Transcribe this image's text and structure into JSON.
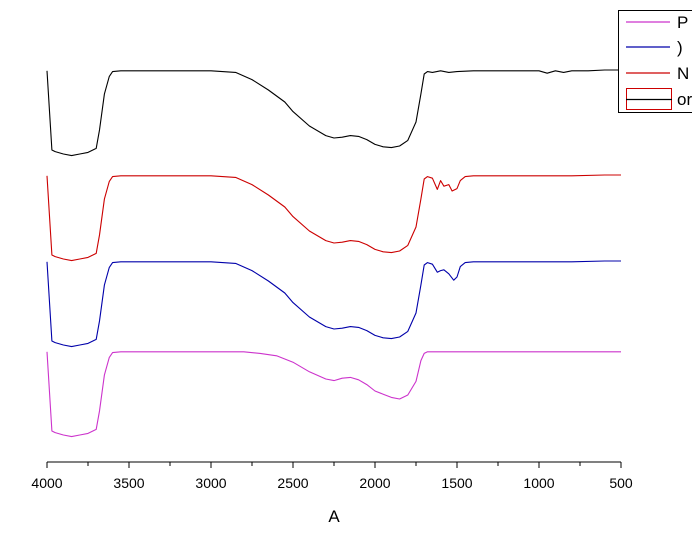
{
  "chart_data": {
    "type": "line",
    "title": "",
    "xlabel": "A",
    "ylabel": "",
    "xlim": [
      4000,
      500
    ],
    "x_reversed": true,
    "grid": false,
    "legend_placement": "top-right",
    "xticks": [
      4000,
      3500,
      3000,
      2500,
      2000,
      1500,
      1000,
      500
    ],
    "series": [
      {
        "name": "or",
        "color": "#000000",
        "offset": 0,
        "x": [
          4000,
          3970,
          3950,
          3900,
          3850,
          3800,
          3750,
          3700,
          3680,
          3650,
          3620,
          3600,
          3550,
          3500,
          3000,
          2850,
          2750,
          2650,
          2550,
          2500,
          2400,
          2300,
          2250,
          2200,
          2150,
          2100,
          2050,
          2000,
          1950,
          1900,
          1850,
          1800,
          1750,
          1720,
          1700,
          1680,
          1650,
          1600,
          1550,
          1500,
          1400,
          1200,
          1000,
          950,
          900,
          850,
          800,
          700,
          600,
          500
        ],
        "y": [
          99,
          0,
          -2,
          -5,
          -7,
          -5,
          -3,
          2,
          25,
          70,
          92,
          98,
          99,
          99,
          99,
          97,
          88,
          75,
          60,
          48,
          30,
          18,
          15,
          16,
          18,
          17,
          13,
          7,
          4,
          3,
          5,
          12,
          35,
          70,
          95,
          98,
          97,
          99,
          97,
          98,
          99,
          99,
          99,
          96,
          99,
          97,
          99,
          99,
          100,
          100
        ]
      },
      {
        "name": "N",
        "color": "#cc0000",
        "offset": 1,
        "x": [
          4000,
          3970,
          3950,
          3900,
          3850,
          3800,
          3750,
          3700,
          3680,
          3650,
          3620,
          3600,
          3550,
          3500,
          3000,
          2850,
          2750,
          2650,
          2550,
          2500,
          2400,
          2300,
          2250,
          2200,
          2150,
          2100,
          2050,
          2000,
          1950,
          1900,
          1850,
          1800,
          1750,
          1720,
          1700,
          1680,
          1650,
          1620,
          1600,
          1580,
          1550,
          1530,
          1500,
          1480,
          1450,
          1400,
          1200,
          1000,
          800,
          600,
          500
        ],
        "y": [
          99,
          0,
          -2,
          -5,
          -7,
          -5,
          -3,
          2,
          25,
          70,
          92,
          98,
          99,
          99,
          99,
          97,
          88,
          75,
          60,
          48,
          30,
          18,
          15,
          16,
          18,
          17,
          13,
          7,
          4,
          3,
          5,
          12,
          35,
          70,
          95,
          98,
          96,
          82,
          93,
          86,
          88,
          80,
          83,
          93,
          98,
          99,
          99,
          99,
          99,
          100,
          100
        ]
      },
      {
        "name": ")",
        "color": "#0000aa",
        "offset": 2,
        "x": [
          4000,
          3970,
          3950,
          3900,
          3850,
          3800,
          3750,
          3700,
          3680,
          3650,
          3620,
          3600,
          3550,
          3500,
          3000,
          2850,
          2750,
          2650,
          2550,
          2500,
          2400,
          2300,
          2250,
          2200,
          2150,
          2100,
          2050,
          2000,
          1950,
          1900,
          1850,
          1800,
          1750,
          1720,
          1700,
          1680,
          1650,
          1620,
          1600,
          1580,
          1550,
          1520,
          1500,
          1480,
          1450,
          1400,
          1200,
          1000,
          800,
          600,
          500
        ],
        "y": [
          99,
          0,
          -2,
          -5,
          -7,
          -5,
          -3,
          2,
          25,
          70,
          92,
          98,
          99,
          99,
          99,
          97,
          88,
          75,
          60,
          48,
          30,
          18,
          15,
          16,
          18,
          17,
          13,
          7,
          4,
          3,
          5,
          12,
          35,
          70,
          95,
          98,
          96,
          86,
          88,
          89,
          84,
          76,
          80,
          93,
          98,
          99,
          99,
          99,
          99,
          100,
          100
        ]
      },
      {
        "name": "P",
        "color": "#cc33cc",
        "offset": 3,
        "x": [
          4000,
          3970,
          3950,
          3900,
          3850,
          3800,
          3750,
          3700,
          3680,
          3650,
          3620,
          3600,
          3550,
          3500,
          3000,
          2800,
          2700,
          2600,
          2500,
          2400,
          2300,
          2250,
          2200,
          2150,
          2100,
          2050,
          2000,
          1950,
          1900,
          1850,
          1800,
          1750,
          1720,
          1700,
          1680,
          1650,
          1600,
          1500,
          1000,
          500
        ],
        "y": [
          99,
          0,
          -2,
          -5,
          -7,
          -5,
          -3,
          2,
          25,
          70,
          92,
          98,
          99,
          99,
          99,
          99,
          97,
          94,
          86,
          74,
          65,
          63,
          66,
          67,
          64,
          58,
          50,
          46,
          42,
          40,
          45,
          62,
          88,
          97,
          99,
          99,
          99,
          99,
          99,
          99
        ]
      }
    ],
    "legend": [
      {
        "name": "P",
        "color": "#cc33cc",
        "style": "line"
      },
      {
        "name": ")",
        "color": "#0000aa",
        "style": "line"
      },
      {
        "name": "N",
        "color": "#cc0000",
        "style": "line"
      },
      {
        "name": "or",
        "color": "#000000",
        "style": "box-line"
      }
    ]
  }
}
